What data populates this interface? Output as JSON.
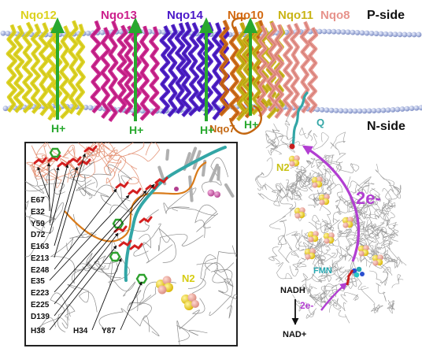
{
  "sides": {
    "p_side": "P-side",
    "n_side": "N-side"
  },
  "subunits": [
    {
      "label": "Nqo12",
      "color": "#dcd21e"
    },
    {
      "label": "Nqo13",
      "color": "#cc1f8c"
    },
    {
      "label": "Nqo14",
      "color": "#4a18c9"
    },
    {
      "label": "Nqo10",
      "color": "#d36a12"
    },
    {
      "label": "Nqo11",
      "color": "#c9b416"
    },
    {
      "label": "Nqo8",
      "color": "#e7938c"
    }
  ],
  "nqo7": {
    "label": "Nqo7",
    "color": "#c3660f"
  },
  "proton_label": "H+",
  "proton_arrow_color": "#28a82e",
  "quinone": {
    "label": "Q",
    "color": "#33a6a6"
  },
  "clusters": {
    "label": "N2",
    "color": "#e4dc22"
  },
  "electrons": {
    "big": "2e-",
    "small": "2e-",
    "color": "#b23ed2"
  },
  "fmn": {
    "label": "FMN",
    "color": "#26a8b2"
  },
  "nadh": {
    "from": "NADH",
    "to": "NAD+"
  },
  "inset": {
    "cluster_label": "N2",
    "residues": [
      "E67",
      "E32",
      "Y59",
      "D72",
      "E163",
      "E213",
      "E248",
      "E35",
      "E223",
      "E225",
      "D139",
      "H38",
      "H34",
      "Y87"
    ]
  }
}
